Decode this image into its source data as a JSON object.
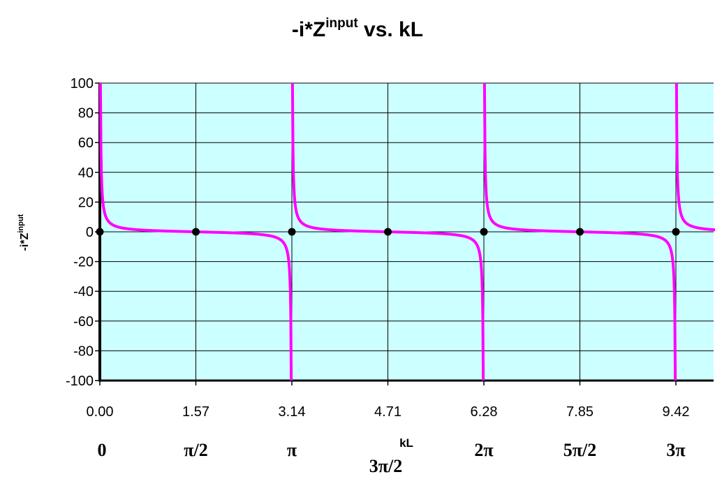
{
  "chart_data": {
    "type": "line",
    "title": "-i*Z",
    "title_superscript": "input",
    "title_suffix": " vs. kL",
    "ylabel": "-i*Z",
    "ylabel_superscript": "input",
    "xlabel": "kL",
    "xlim": [
      0,
      10.21
    ],
    "ylim": [
      -100,
      100
    ],
    "y_ticks": [
      100,
      80,
      60,
      40,
      20,
      0,
      -20,
      -40,
      -60,
      -80,
      -100
    ],
    "y_tick_labels": [
      "100",
      "80",
      "60",
      "40",
      "20",
      "0",
      "-20",
      "-40",
      "-60",
      "-80",
      "-100"
    ],
    "x_ticks": [
      0,
      1.5708,
      3.1416,
      4.7124,
      6.2832,
      7.854,
      9.4248
    ],
    "x_tick_labels": [
      "0.00",
      "1.57",
      "3.14",
      "4.71",
      "6.28",
      "7.85",
      "9.42"
    ],
    "x_pi_labels": [
      "0",
      "π/2",
      "π",
      "3π/2",
      "2π",
      "5π/2",
      "3π"
    ],
    "grid": true,
    "plot_background": "#ccffff",
    "series": [
      {
        "function": "cot(kL)",
        "color": "#ff00ff",
        "x_range": [
          0,
          10.21
        ]
      }
    ],
    "markers": [
      {
        "x": 0,
        "y": 0
      },
      {
        "x": 1.5708,
        "y": 0
      },
      {
        "x": 3.1416,
        "y": 0
      },
      {
        "x": 4.7124,
        "y": 0
      },
      {
        "x": 6.2832,
        "y": 0
      },
      {
        "x": 7.854,
        "y": 0
      },
      {
        "x": 9.4248,
        "y": 0
      }
    ],
    "marker_color": "#000000"
  }
}
